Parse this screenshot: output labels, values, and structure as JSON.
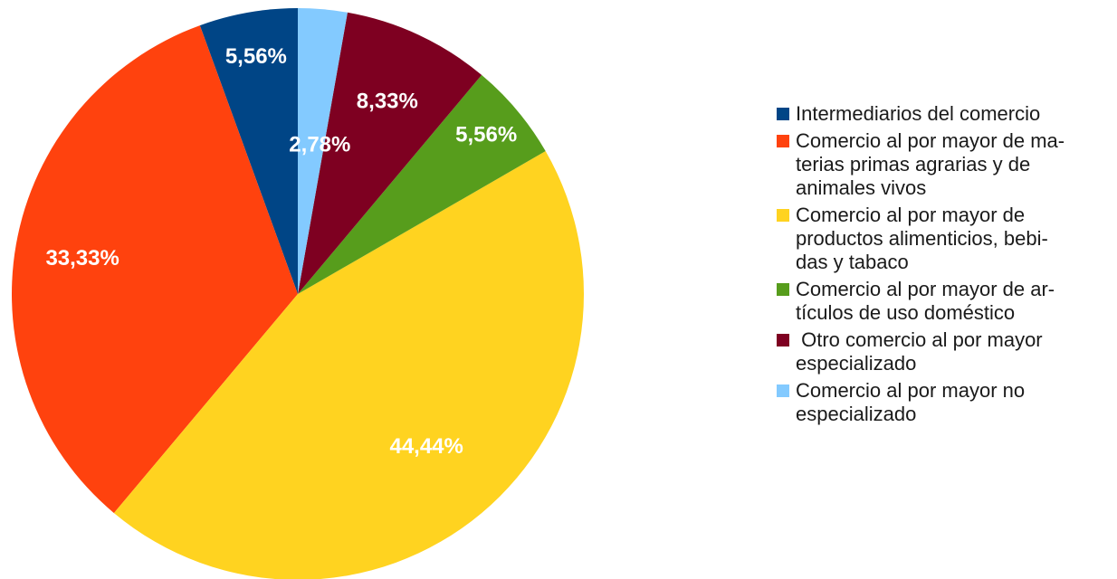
{
  "chart_data": {
    "type": "pie",
    "series": [
      {
        "name": "Intermediarios del comercio",
        "legend_text": "Intermediarios del comercio",
        "label": "5,56%",
        "value": 5.56,
        "color": "#004586"
      },
      {
        "name": "Comercio al por mayor de materias primas agrarias y de animales vivos",
        "legend_text": "Comercio al por mayor de ma-\nterias primas agrarias y de\nanimales vivos",
        "label": "33,33%",
        "value": 33.33,
        "color": "#ff420e"
      },
      {
        "name": "Comercio al por mayor de productos alimenticios, bebidas y tabaco",
        "legend_text": "Comercio al por mayor de\nproductos alimenticios, bebi-\ndas y tabaco",
        "label": "44,44%",
        "value": 44.44,
        "color": "#ffd320"
      },
      {
        "name": "Comercio al por mayor de artículos de uso doméstico",
        "legend_text": "Comercio al por mayor de ar-\ntículos de uso doméstico",
        "label": "5,56%",
        "value": 5.56,
        "color": "#579d1c"
      },
      {
        "name": "Otro comercio al por mayor especializado",
        "legend_text": " Otro comercio al por mayor\nespecializado",
        "label": "8,33%",
        "value": 8.33,
        "color": "#7e0021"
      },
      {
        "name": "Comercio al por mayor no especializado",
        "legend_text": "Comercio al por mayor no\nespecializado",
        "label": "2,78%",
        "value": 2.78,
        "color": "#83caff"
      }
    ],
    "legend_placement": "right"
  }
}
